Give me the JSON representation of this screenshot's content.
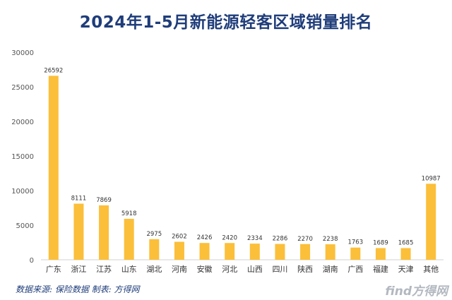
{
  "chart_data": {
    "type": "bar",
    "title": "2024年1-5月新能源轻客区域销量排名",
    "categories": [
      "广东",
      "浙江",
      "江苏",
      "山东",
      "湖北",
      "河南",
      "安徽",
      "河北",
      "山西",
      "四川",
      "陕西",
      "湖南",
      "广西",
      "福建",
      "天津",
      "其他"
    ],
    "values": [
      26592,
      8111,
      7869,
      5918,
      2975,
      2602,
      2426,
      2420,
      2334,
      2286,
      2270,
      2238,
      1763,
      1689,
      1685,
      10987
    ],
    "yticks": [
      0,
      5000,
      10000,
      15000,
      20000,
      25000,
      30000
    ],
    "ylim": [
      0,
      30000
    ],
    "bar_color": "#fbbf3a",
    "grid": false,
    "legend": "none"
  },
  "footer": {
    "source": "数据来源: 保险数据 制表: 方得网",
    "brand": "find方得网"
  }
}
